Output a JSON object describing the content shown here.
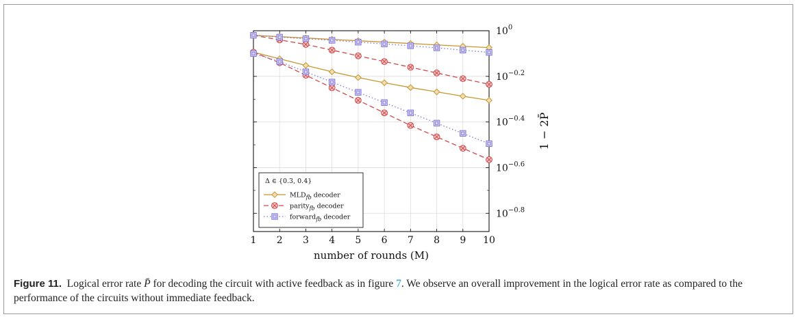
{
  "chart_data": {
    "type": "line",
    "x": [
      1,
      2,
      3,
      4,
      5,
      6,
      7,
      8,
      9,
      10
    ],
    "xlabel": "number of rounds (M)",
    "ylabel": "1 − 2P̄",
    "xlim": [
      1,
      10
    ],
    "ylim_log10": [
      -0.88,
      0
    ],
    "yscale": "log",
    "grid": true,
    "x_ticks": [
      "1",
      "2",
      "3",
      "4",
      "5",
      "6",
      "7",
      "8",
      "9",
      "10"
    ],
    "y_ticks": [
      {
        "value": 0,
        "base": "10",
        "exp": "0"
      },
      {
        "value": -0.2,
        "base": "10",
        "exp": "−0.2"
      },
      {
        "value": -0.4,
        "base": "10",
        "exp": "−0.4"
      },
      {
        "value": -0.6,
        "base": "10",
        "exp": "−0.6"
      },
      {
        "value": -0.8,
        "base": "10",
        "exp": "−0.8"
      }
    ],
    "legend": {
      "title": "Δ ∈ {0.3, 0.4}",
      "placement": "bottom-left",
      "entries": [
        {
          "name": "MLD",
          "sub": "fb",
          "suffix": " decoder",
          "color": "#c8962e",
          "marker": "diamond",
          "dash": "solid"
        },
        {
          "name": "parity",
          "sub": "fb",
          "suffix": " decoder",
          "color": "#d04848",
          "marker": "circle-x",
          "dash": "dashed"
        },
        {
          "name": "forward",
          "sub": "fb",
          "suffix": " decoder",
          "color": "#7e75d6",
          "marker": "square",
          "dash": "dotted"
        }
      ]
    },
    "series": [
      {
        "group": "MLD",
        "delta": "0.3",
        "log10_values": [
          -0.02,
          -0.026,
          -0.032,
          -0.038,
          -0.044,
          -0.05,
          -0.056,
          -0.062,
          -0.068,
          -0.074
        ]
      },
      {
        "group": "MLD",
        "delta": "0.4",
        "log10_values": [
          -0.094,
          -0.123,
          -0.152,
          -0.18,
          -0.205,
          -0.228,
          -0.249,
          -0.268,
          -0.287,
          -0.305
        ]
      },
      {
        "group": "parity",
        "delta": "0.3",
        "log10_values": [
          -0.02,
          -0.04,
          -0.06,
          -0.085,
          -0.11,
          -0.135,
          -0.16,
          -0.185,
          -0.21,
          -0.235
        ]
      },
      {
        "group": "parity",
        "delta": "0.4",
        "log10_values": [
          -0.094,
          -0.14,
          -0.195,
          -0.25,
          -0.305,
          -0.36,
          -0.415,
          -0.465,
          -0.515,
          -0.565
        ]
      },
      {
        "group": "forward",
        "delta": "0.3",
        "log10_values": [
          -0.02,
          -0.028,
          -0.035,
          -0.042,
          -0.05,
          -0.058,
          -0.066,
          -0.075,
          -0.085,
          -0.095
        ]
      },
      {
        "group": "forward",
        "delta": "0.4",
        "log10_values": [
          -0.1,
          -0.135,
          -0.18,
          -0.225,
          -0.27,
          -0.315,
          -0.36,
          -0.405,
          -0.45,
          -0.495
        ]
      }
    ]
  },
  "caption": {
    "label": "Figure 11.",
    "text_before": "Logical error rate ",
    "symbol": "P̄",
    "text_middle": " for decoding the circuit with active feedback as in figure ",
    "ref": "7",
    "text_after": ". We observe an overall improvement in the logical error rate as compared to the performance of the circuits without immediate feedback."
  }
}
